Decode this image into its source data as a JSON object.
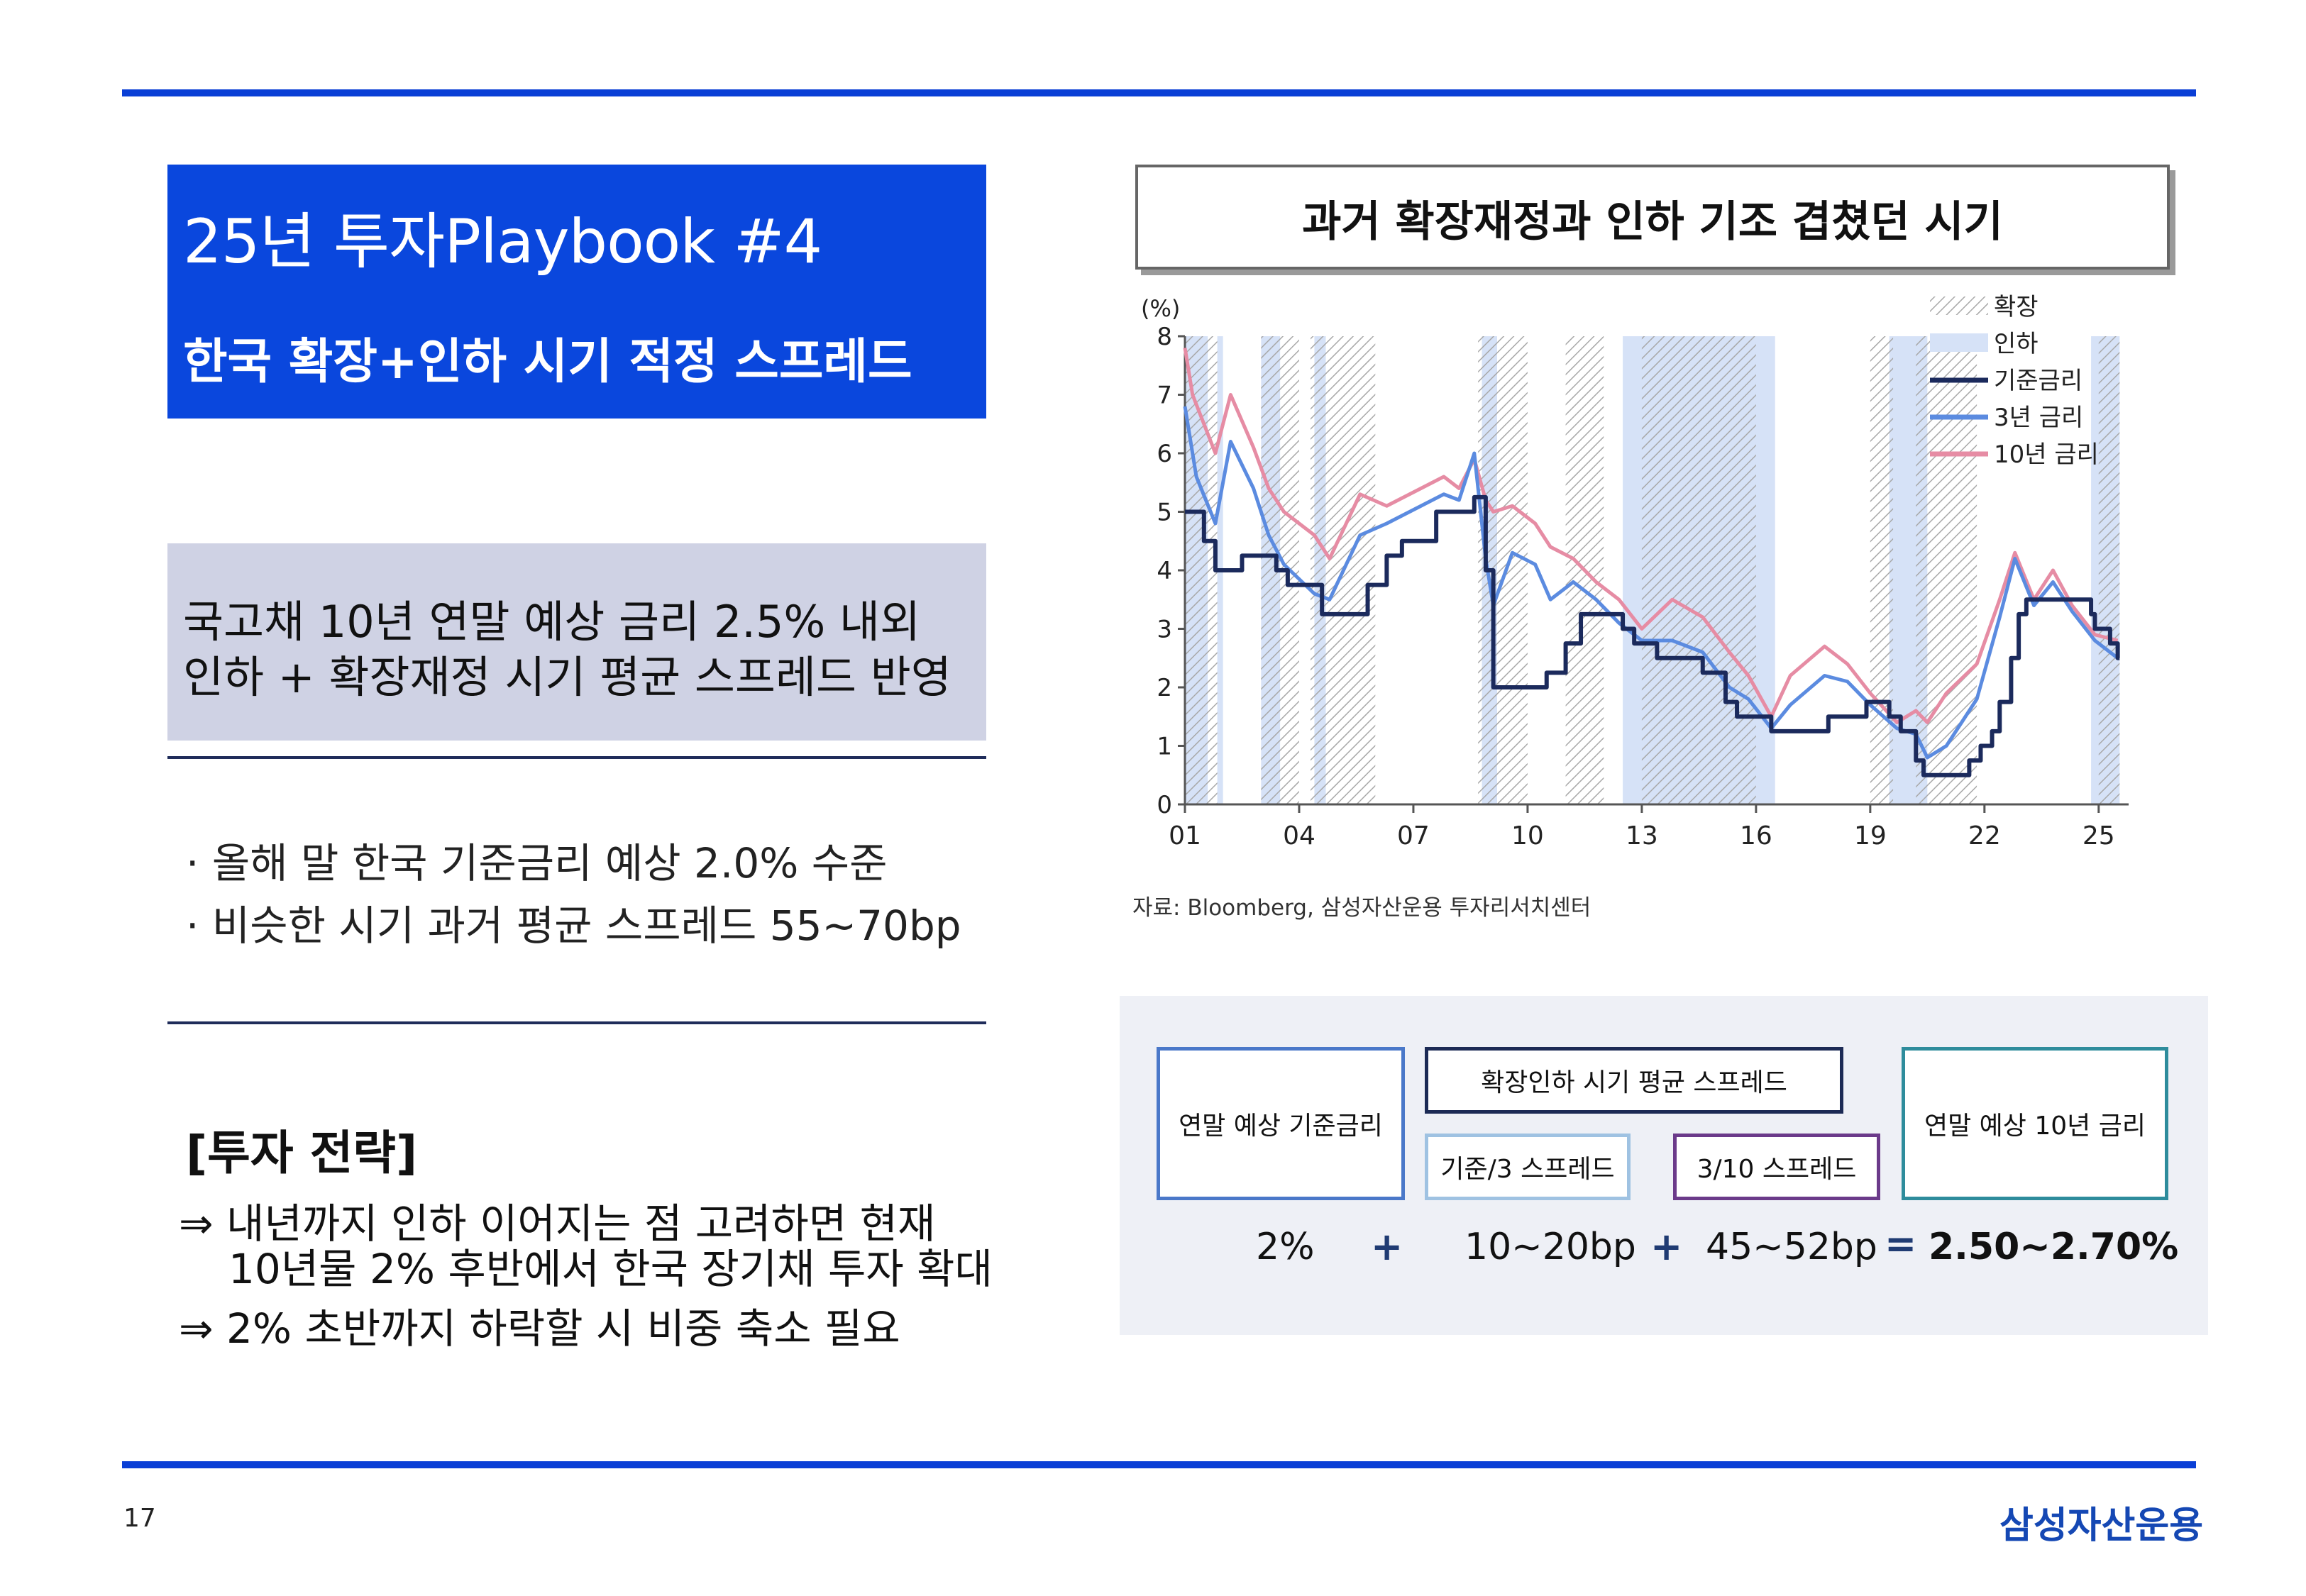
{
  "header": {
    "title": "25년 투자Playbook #4",
    "subtitle": "한국 확장+인하 시기 적정 스프레드"
  },
  "summary": {
    "line1": "국고채 10년 연말 예상 금리 2.5% 내외",
    "line2": "인하 + 확장재정 시기 평균 스프레드 반영"
  },
  "bullets": [
    "· 올해 말 한국 기준금리 예상 2.0% 수준",
    "· 비슷한 시기 과거 평균 스프레드 55~70bp"
  ],
  "strategy": {
    "title": "[투자 전략]",
    "line1": "⇒ 내년까지 인하 이어지는 점 고려하면 현재",
    "line1b": "10년물 2% 후반에서 한국 장기채 투자 확대",
    "line2": "⇒ 2% 초반까지 하락할 시 비중 축소 필요"
  },
  "chart_title": "과거 확장재정과 인하 기조 겹쳤던 시기",
  "source": "자료: Bloomberg, 삼성자산운용 투자리서치센터",
  "chart_data": {
    "type": "line",
    "ylabel": "(%)",
    "ylim": [
      0,
      8
    ],
    "yticks": [
      "0",
      "1",
      "2",
      "3",
      "4",
      "5",
      "6",
      "7",
      "8"
    ],
    "xlim": [
      2001,
      2025.6
    ],
    "xticks": [
      {
        "x": 2001,
        "label": "01"
      },
      {
        "x": 2004,
        "label": "04"
      },
      {
        "x": 2007,
        "label": "07"
      },
      {
        "x": 2010,
        "label": "10"
      },
      {
        "x": 2013,
        "label": "13"
      },
      {
        "x": 2016,
        "label": "16"
      },
      {
        "x": 2019,
        "label": "19"
      },
      {
        "x": 2022,
        "label": "22"
      },
      {
        "x": 2025,
        "label": "25"
      }
    ],
    "legend": [
      "확장",
      "인하",
      "기준금리",
      "3년 금리",
      "10년 금리"
    ],
    "legend_position": "top-right",
    "colors": {
      "base": "#1b2a5c",
      "y3": "#5b8be0",
      "y10": "#e68ca4",
      "cut": "#d6e2f7",
      "hatch": "#b0b0b0"
    },
    "expansion_periods": [
      [
        2001.0,
        2001.85
      ],
      [
        2003.0,
        2004.0
      ],
      [
        2004.3,
        2006.0
      ],
      [
        2008.7,
        2010.0
      ],
      [
        2011.0,
        2012.0
      ],
      [
        2013.0,
        2016.0
      ],
      [
        2019.0,
        2019.6
      ],
      [
        2020.2,
        2021.8
      ],
      [
        2025.0,
        2025.55
      ]
    ],
    "cut_periods": [
      [
        2001.0,
        2001.6
      ],
      [
        2001.85,
        2002.0
      ],
      [
        2003.0,
        2003.5
      ],
      [
        2004.4,
        2004.7
      ],
      [
        2008.8,
        2009.2
      ],
      [
        2012.5,
        2016.5
      ],
      [
        2019.5,
        2020.5
      ],
      [
        2024.8,
        2025.55
      ]
    ],
    "series": [
      {
        "name": "기준금리",
        "x": [
          2001,
          2001.5,
          2001.8,
          2002.5,
          2003.4,
          2003.7,
          2004.6,
          2005.8,
          2006.3,
          2006.7,
          2007.6,
          2008.6,
          2008.9,
          2009.1,
          2010.5,
          2011.0,
          2011.4,
          2012.5,
          2012.8,
          2013.4,
          2014.6,
          2015.2,
          2015.5,
          2016.4,
          2017.9,
          2018.9,
          2019.5,
          2019.8,
          2020.2,
          2020.4,
          2021.6,
          2021.9,
          2022.2,
          2022.4,
          2022.7,
          2022.9,
          2023.1,
          2024.8,
          2024.9,
          2025.3,
          2025.5
        ],
        "values": [
          5.0,
          4.5,
          4.0,
          4.25,
          4.0,
          3.75,
          3.25,
          3.75,
          4.25,
          4.5,
          5.0,
          5.25,
          4.0,
          2.0,
          2.25,
          2.75,
          3.25,
          3.0,
          2.75,
          2.5,
          2.25,
          1.75,
          1.5,
          1.25,
          1.5,
          1.75,
          1.5,
          1.25,
          0.75,
          0.5,
          0.75,
          1.0,
          1.25,
          1.75,
          2.5,
          3.25,
          3.5,
          3.25,
          3.0,
          2.75,
          2.5
        ]
      },
      {
        "name": "3년 금리",
        "x": [
          2001,
          2001.3,
          2001.8,
          2002.2,
          2002.8,
          2003.2,
          2003.6,
          2004.4,
          2004.8,
          2005.6,
          2006.3,
          2007.2,
          2007.8,
          2008.2,
          2008.6,
          2008.9,
          2009.1,
          2009.6,
          2010.2,
          2010.6,
          2011.2,
          2011.8,
          2012.4,
          2013.0,
          2013.8,
          2014.6,
          2015.3,
          2015.8,
          2016.4,
          2016.9,
          2017.8,
          2018.4,
          2019.0,
          2019.7,
          2020.2,
          2020.5,
          2021.0,
          2021.8,
          2022.4,
          2022.8,
          2023.3,
          2023.8,
          2024.3,
          2024.9,
          2025.5
        ],
        "values": [
          6.8,
          5.6,
          4.8,
          6.2,
          5.4,
          4.6,
          4.1,
          3.6,
          3.5,
          4.6,
          4.8,
          5.1,
          5.3,
          5.2,
          6.0,
          4.2,
          3.4,
          4.3,
          4.1,
          3.5,
          3.8,
          3.5,
          3.1,
          2.8,
          2.8,
          2.6,
          2.0,
          1.8,
          1.3,
          1.7,
          2.2,
          2.1,
          1.7,
          1.3,
          1.2,
          0.8,
          1.0,
          1.8,
          3.2,
          4.2,
          3.4,
          3.8,
          3.3,
          2.8,
          2.5
        ]
      },
      {
        "name": "10년 금리",
        "x": [
          2001,
          2001.2,
          2001.8,
          2002.2,
          2002.8,
          2003.2,
          2003.6,
          2004.4,
          2004.8,
          2005.6,
          2006.3,
          2007.2,
          2007.8,
          2008.2,
          2008.6,
          2008.9,
          2009.1,
          2009.6,
          2010.2,
          2010.6,
          2011.2,
          2011.8,
          2012.4,
          2013.0,
          2013.8,
          2014.6,
          2015.3,
          2015.8,
          2016.4,
          2016.9,
          2017.8,
          2018.4,
          2019.0,
          2019.7,
          2020.2,
          2020.5,
          2021.0,
          2021.8,
          2022.4,
          2022.8,
          2023.3,
          2023.8,
          2024.3,
          2024.9,
          2025.5
        ],
        "values": [
          7.8,
          7.0,
          6.0,
          7.0,
          6.1,
          5.4,
          5.0,
          4.6,
          4.2,
          5.3,
          5.1,
          5.4,
          5.6,
          5.4,
          5.9,
          5.2,
          5.0,
          5.1,
          4.8,
          4.4,
          4.2,
          3.8,
          3.5,
          3.0,
          3.5,
          3.2,
          2.6,
          2.2,
          1.5,
          2.2,
          2.7,
          2.4,
          1.9,
          1.4,
          1.6,
          1.4,
          1.9,
          2.4,
          3.5,
          4.3,
          3.5,
          4.0,
          3.4,
          2.9,
          2.8
        ]
      }
    ]
  },
  "calc": {
    "box_base": "연말 예상 기준금리",
    "box_spread_header": "확장인하 시기 평균 스프레드",
    "box_spread_a": "기준/3 스프레드",
    "box_spread_b": "3/10 스프레드",
    "box_10y": "연말 예상 10년 금리",
    "val_base": "2%",
    "val_a": "10~20bp",
    "val_b": "45~52bp",
    "val_result": "2.50~2.70%",
    "op_plus": "+",
    "op_eq": "="
  },
  "footer": {
    "page": "17",
    "logo": "삼성자산운용"
  }
}
